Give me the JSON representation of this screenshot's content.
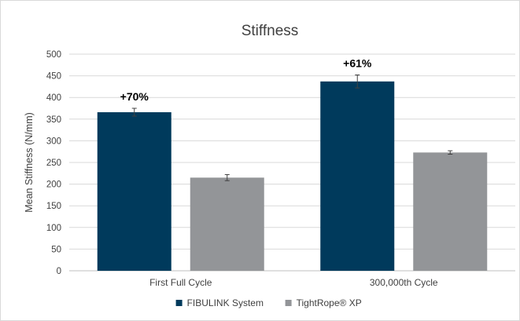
{
  "chart_data": {
    "type": "bar",
    "title": "Stiffness",
    "ylabel": "Mean Stiffness (N/mm)",
    "xlabel": "",
    "ylim": [
      0,
      500
    ],
    "yticks": [
      0,
      50,
      100,
      150,
      200,
      250,
      300,
      350,
      400,
      450,
      500
    ],
    "categories": [
      "First Full Cycle",
      "300,000th Cycle"
    ],
    "series": [
      {
        "name": "FIBULINK System",
        "color": "#003a5c",
        "values": [
          366,
          437
        ],
        "errors": [
          9,
          15
        ]
      },
      {
        "name": "TightRope® XP",
        "color": "#939598",
        "values": [
          215,
          273
        ],
        "errors": [
          7,
          4
        ]
      }
    ],
    "annotations": [
      {
        "category": 0,
        "text": "+70%"
      },
      {
        "category": 1,
        "text": "+61%"
      }
    ],
    "grid": true,
    "legend": "bottom-center"
  }
}
